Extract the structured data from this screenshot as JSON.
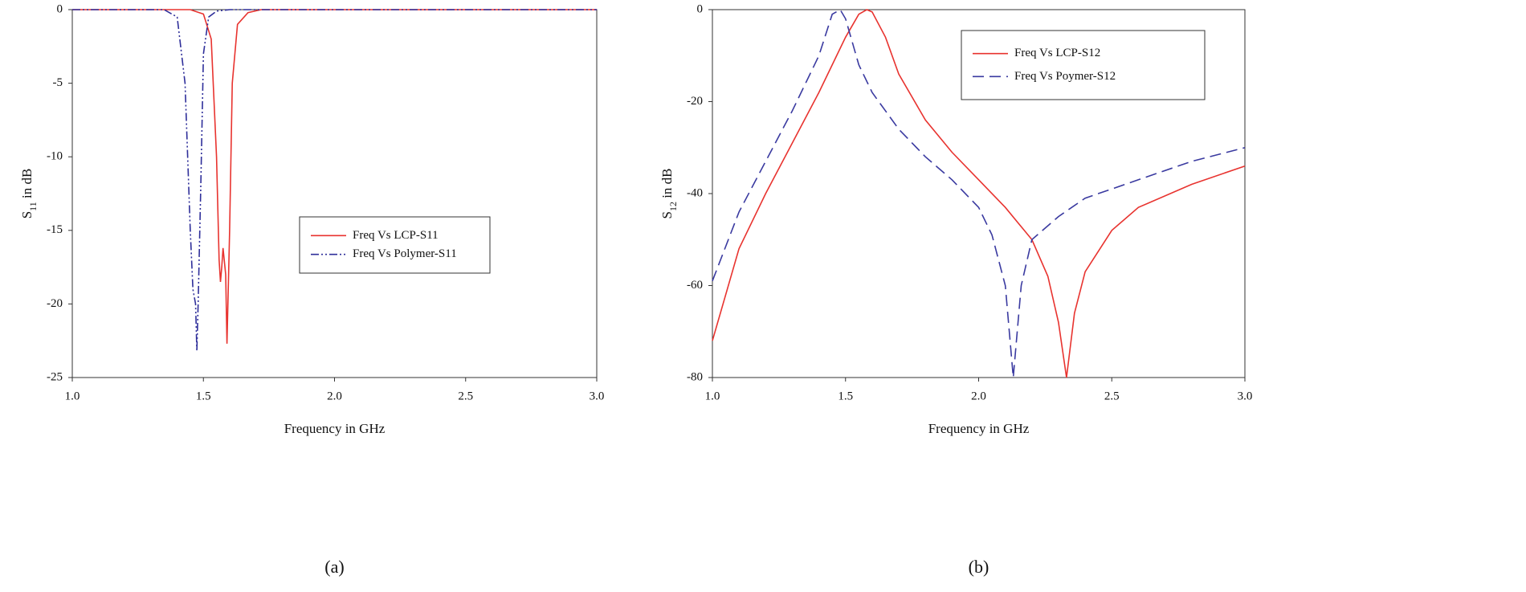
{
  "chart_data": [
    {
      "type": "line",
      "caption": "(a)",
      "xlabel": "Frequency in GHz",
      "ylabel": [
        "S",
        "11",
        " in dB"
      ],
      "xlim": [
        1,
        3
      ],
      "ylim": [
        -25,
        0
      ],
      "xticks": [
        {
          "value": 1,
          "label": "1.0"
        },
        {
          "value": 1.5,
          "label": "1.5"
        },
        {
          "value": 2,
          "label": "2.0"
        },
        {
          "value": 2.5,
          "label": "2.5"
        },
        {
          "value": 3,
          "label": "3.0"
        }
      ],
      "yticks": [
        0,
        -5,
        -10,
        -15,
        -20,
        -25
      ],
      "legend": "center-right",
      "series": [
        {
          "name": "Freq Vs LCP-S11",
          "color": "#e8332f",
          "linestyle": "solid",
          "x": [
            1,
            1.45,
            1.5,
            1.53,
            1.55,
            1.56,
            1.565,
            1.57,
            1.575,
            1.585,
            1.59,
            1.6,
            1.61,
            1.63,
            1.67,
            1.72,
            3
          ],
          "values": [
            0,
            0,
            -0.3,
            -2,
            -10,
            -17,
            -18.5,
            -17.5,
            -16.2,
            -18,
            -22.7,
            -15,
            -5,
            -1,
            -0.2,
            0,
            0
          ]
        },
        {
          "name": "Freq Vs Polymer-S11",
          "color": "#2f2f9a",
          "linestyle": "dashdotdot",
          "x": [
            1,
            1.35,
            1.4,
            1.43,
            1.45,
            1.46,
            1.47,
            1.475,
            1.48,
            1.49,
            1.5,
            1.52,
            1.55,
            1.6,
            3
          ],
          "values": [
            0,
            0,
            -0.5,
            -5,
            -15,
            -19,
            -20,
            -23.2,
            -20,
            -12,
            -3,
            -0.5,
            -0.1,
            0,
            0
          ]
        }
      ]
    },
    {
      "type": "line",
      "caption": "(b)",
      "xlabel": "Frequency in GHz",
      "ylabel": [
        "S",
        "12",
        " in dB"
      ],
      "xlim": [
        1,
        3
      ],
      "ylim": [
        -80,
        0
      ],
      "xticks": [
        {
          "value": 1,
          "label": "1.0"
        },
        {
          "value": 1.5,
          "label": "1.5"
        },
        {
          "value": 2,
          "label": "2.0"
        },
        {
          "value": 2.5,
          "label": "2.5"
        },
        {
          "value": 3,
          "label": "3.0"
        }
      ],
      "yticks": [
        0,
        -20,
        -40,
        -60,
        -80
      ],
      "legend": "upper-right",
      "series": [
        {
          "name": "Freq Vs LCP-S12",
          "color": "#e8332f",
          "linestyle": "solid",
          "x": [
            1,
            1.1,
            1.2,
            1.3,
            1.4,
            1.5,
            1.55,
            1.58,
            1.6,
            1.65,
            1.7,
            1.8,
            1.9,
            2,
            2.1,
            2.2,
            2.26,
            2.3,
            2.33,
            2.36,
            2.4,
            2.5,
            2.6,
            2.8,
            3
          ],
          "values": [
            -72,
            -52,
            -40,
            -29,
            -18,
            -6,
            -1,
            0,
            -0.5,
            -6,
            -14,
            -24,
            -31,
            -37,
            -43,
            -50,
            -58,
            -68,
            -80,
            -66,
            -57,
            -48,
            -43,
            -38,
            -34
          ]
        },
        {
          "name": "Freq Vs Poymer-S12",
          "color": "#3a3aa0",
          "linestyle": "dashed",
          "x": [
            1,
            1.1,
            1.2,
            1.3,
            1.4,
            1.45,
            1.48,
            1.5,
            1.55,
            1.6,
            1.7,
            1.8,
            1.9,
            2,
            2.05,
            2.1,
            2.13,
            2.16,
            2.2,
            2.3,
            2.4,
            2.6,
            2.8,
            3
          ],
          "values": [
            -59,
            -44,
            -33,
            -22,
            -10,
            -1,
            0,
            -2,
            -12,
            -18,
            -26,
            -32,
            -37,
            -43,
            -49,
            -60,
            -80,
            -60,
            -50,
            -45,
            -41,
            -37,
            -33,
            -30
          ]
        }
      ]
    }
  ]
}
